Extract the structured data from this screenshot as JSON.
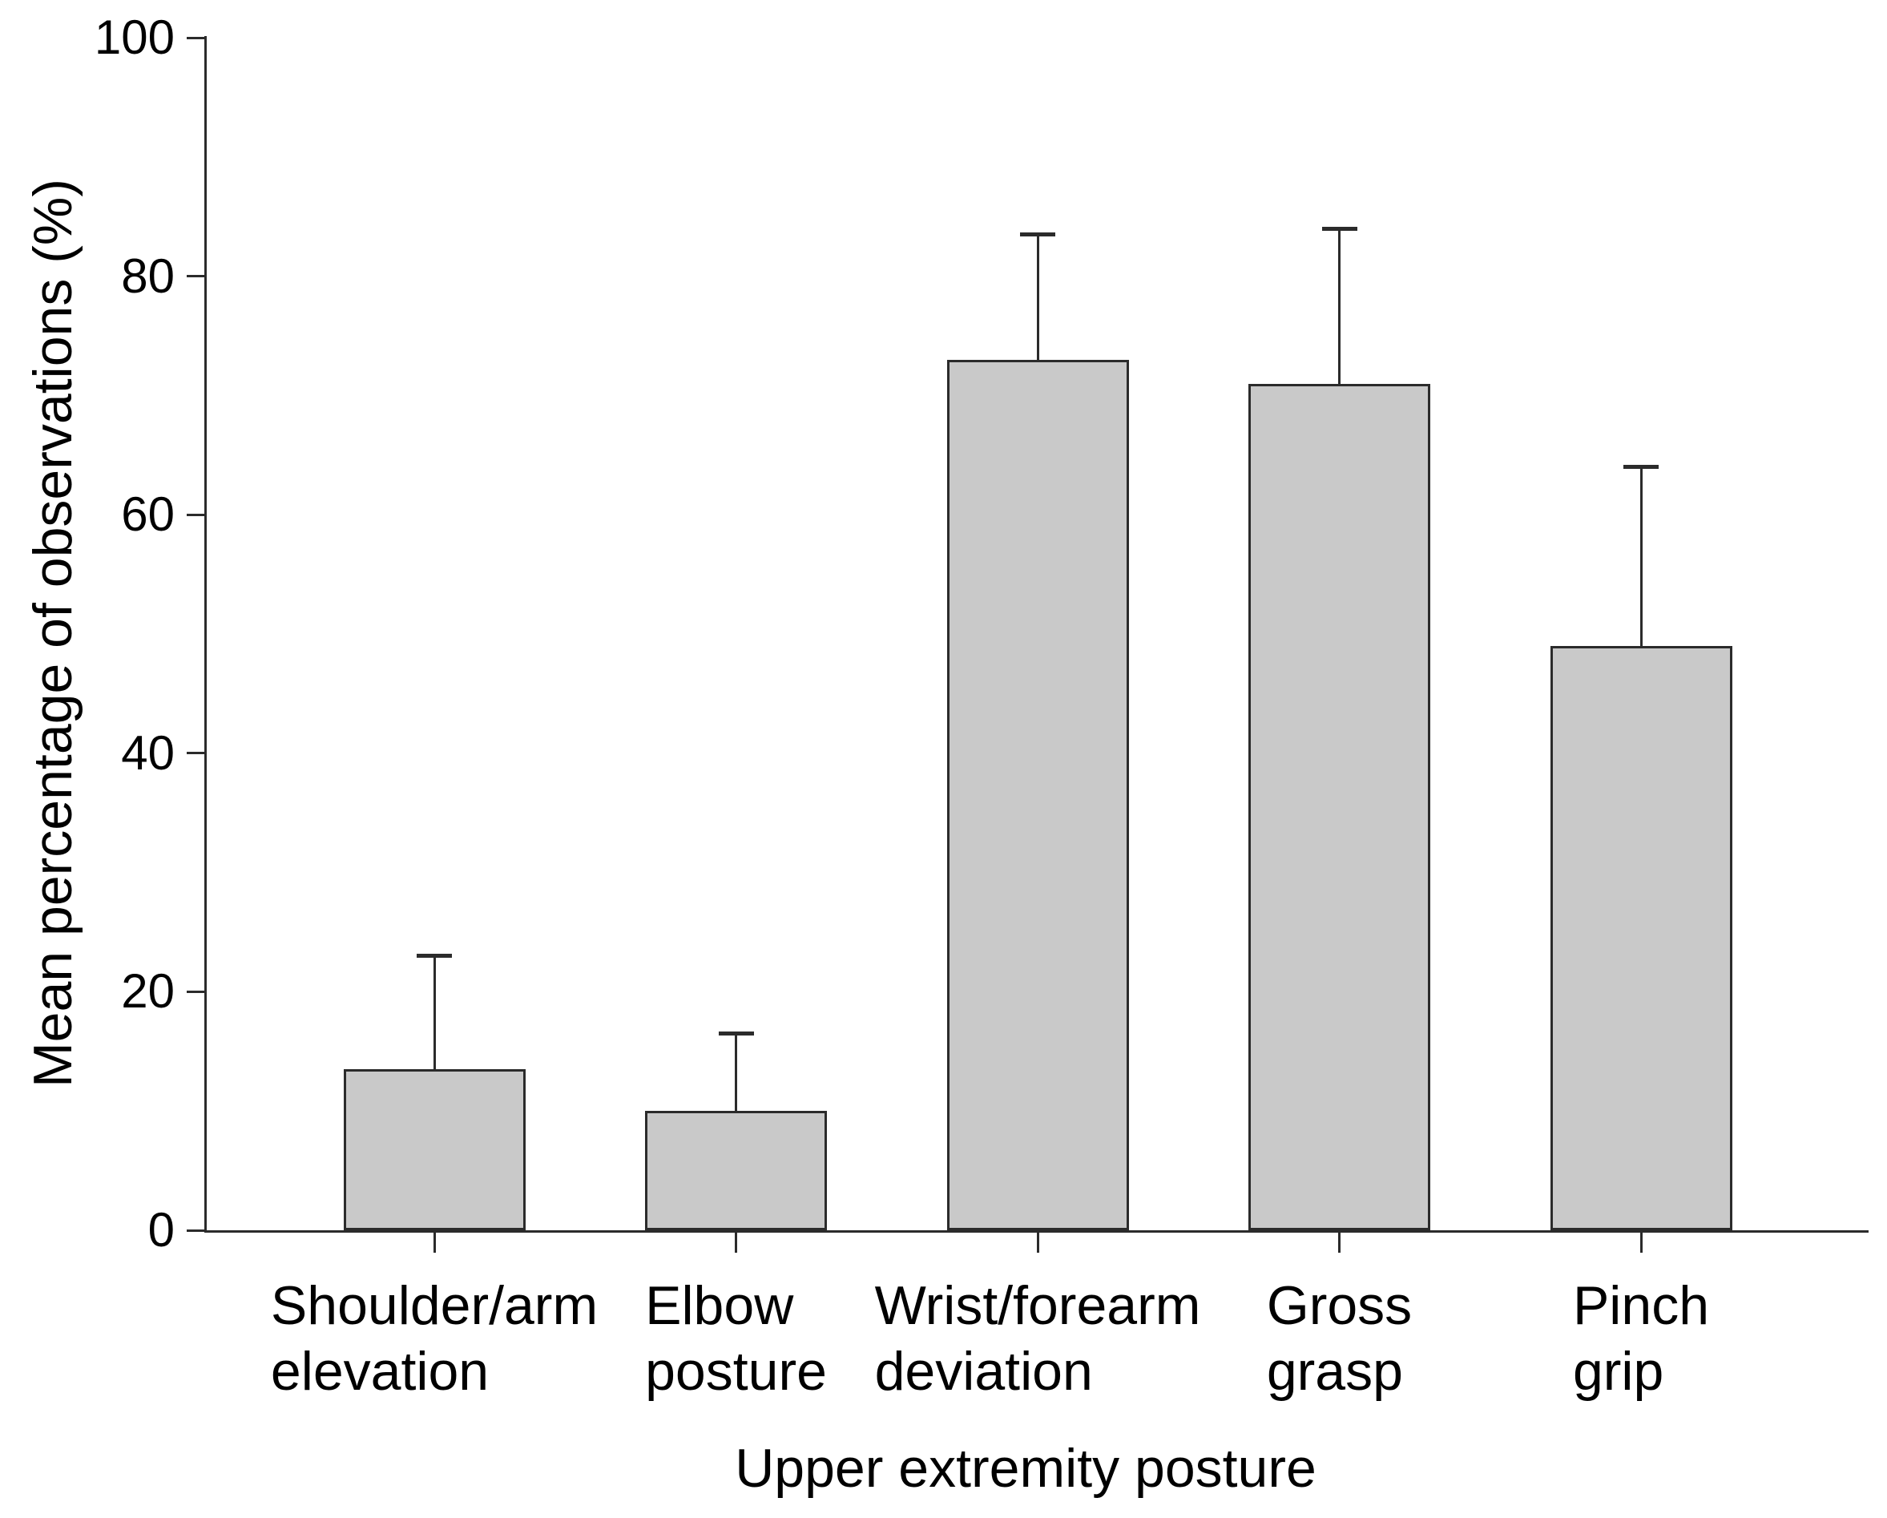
{
  "chart_data": {
    "type": "bar",
    "title": "",
    "xlabel": "Upper extremity posture",
    "ylabel": "Mean percentage of observations (%)",
    "categories": [
      "Shoulder/arm\nelevation",
      "Elbow\nposture",
      "Wrist/forearm\ndeviation",
      "Gross\ngrasp",
      "Pinch\ngrip"
    ],
    "values": [
      13.5,
      10,
      73,
      71,
      49
    ],
    "upper_errors": [
      9.5,
      6.5,
      10.5,
      13,
      15
    ],
    "error_bar_tops": [
      23,
      16.5,
      83.5,
      84,
      64
    ],
    "y_ticks": [
      0,
      20,
      40,
      60,
      80,
      100
    ],
    "ylim": [
      0,
      100
    ],
    "grid": false,
    "legend_position": "none",
    "bar_fill_color": "#c9c9c9",
    "bar_edge_color": "#2b2b2b",
    "axis_color": "#2b2b2b",
    "text_color": "#000000",
    "background_color": "#ffffff"
  }
}
